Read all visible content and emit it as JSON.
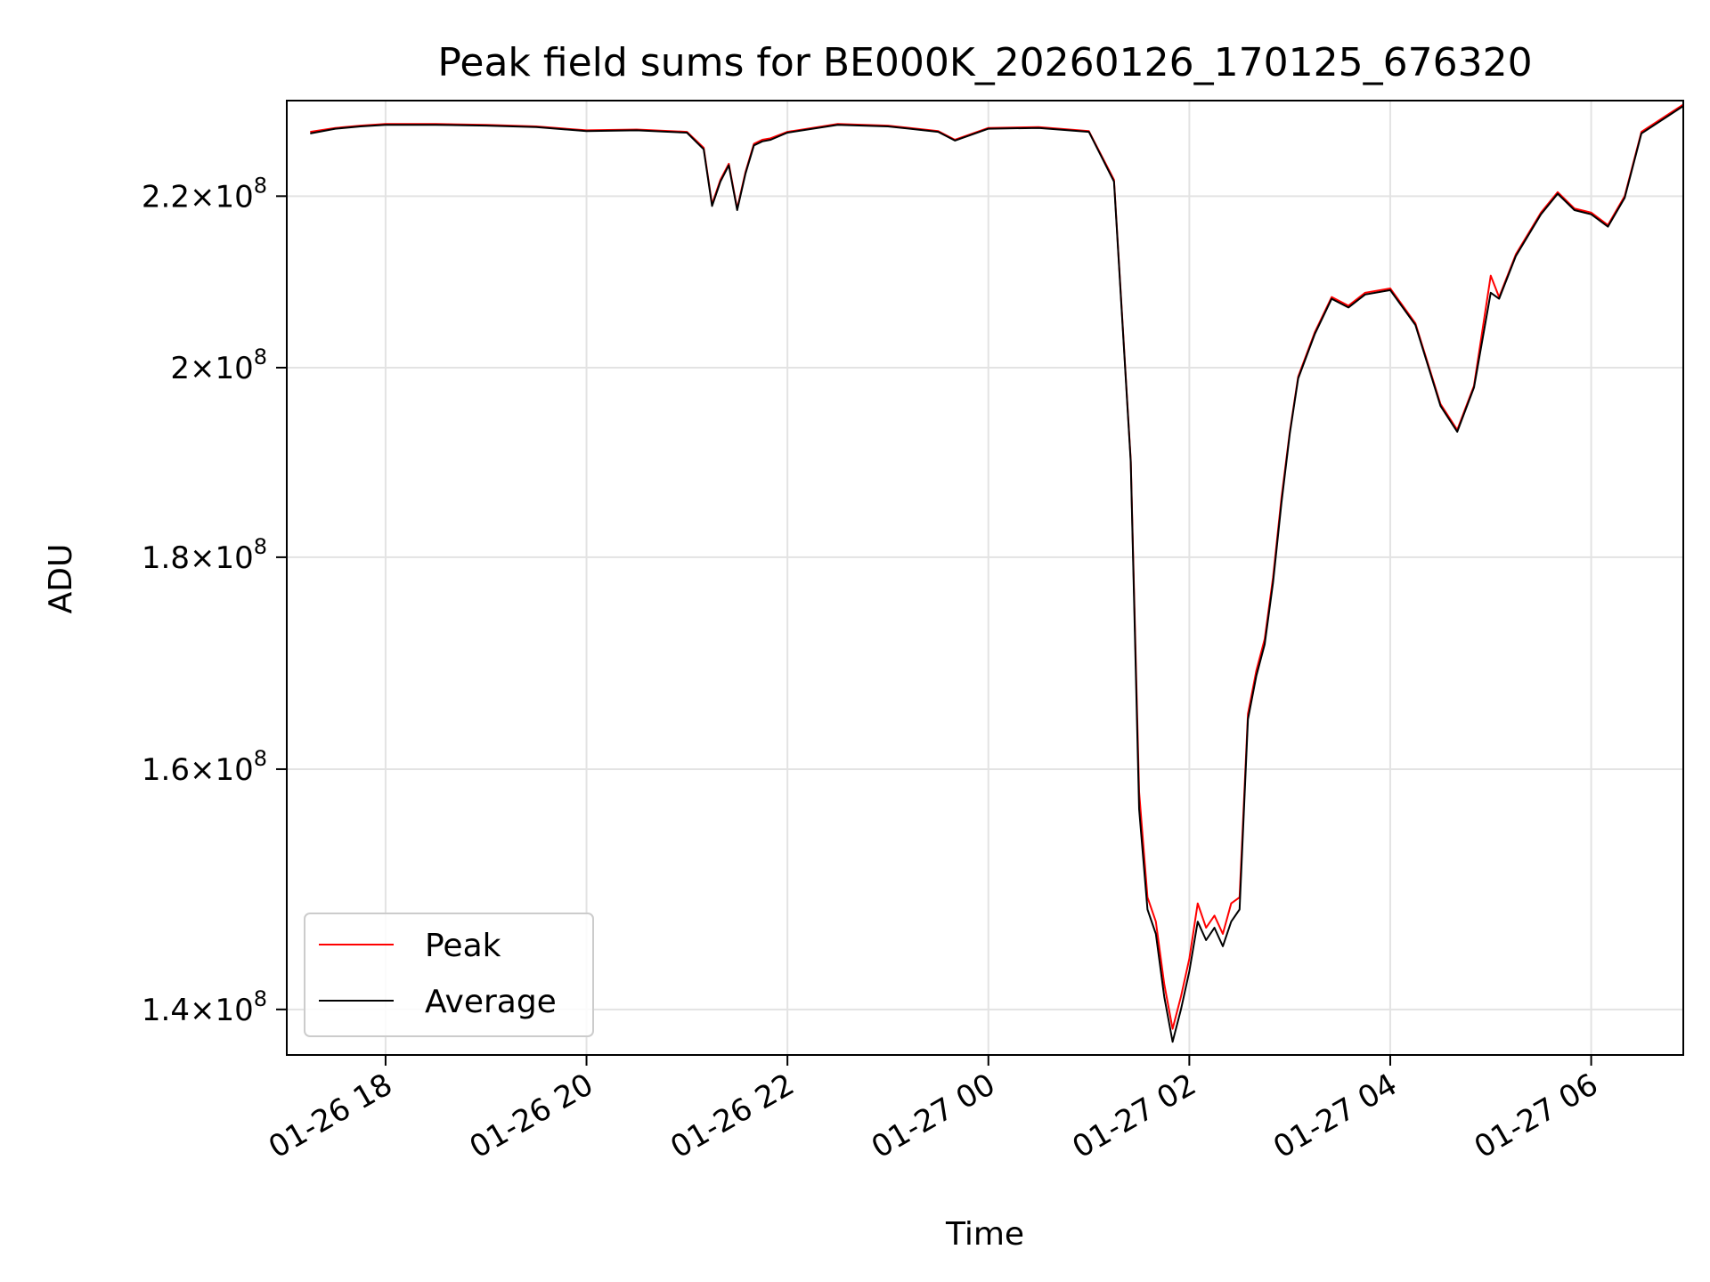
{
  "chart_data": {
    "type": "line",
    "title": "Peak field sums for BE000K_20260126_170125_676320",
    "xlabel": "Time",
    "ylabel": "ADU",
    "y_scale": "log",
    "xlim": [
      "2026-01-26 17:01",
      "2026-01-27 06:55"
    ],
    "ylim": [
      136500000,
      232000000
    ],
    "x_ticks": [
      "01-26 18",
      "01-26 20",
      "01-26 22",
      "01-27 00",
      "01-27 02",
      "01-27 04",
      "01-27 06"
    ],
    "x_tick_values": [
      "2026-01-26 18:00",
      "2026-01-26 20:00",
      "2026-01-26 22:00",
      "2026-01-27 00:00",
      "2026-01-27 02:00",
      "2026-01-27 04:00",
      "2026-01-27 06:00"
    ],
    "y_ticks": [
      {
        "value": 140000000,
        "mantissa": "1.4",
        "exponent": "8"
      },
      {
        "value": 160000000,
        "mantissa": "1.6",
        "exponent": "8"
      },
      {
        "value": 180000000,
        "mantissa": "1.8",
        "exponent": "8"
      },
      {
        "value": 200000000,
        "mantissa": "2",
        "exponent": "8"
      },
      {
        "value": 220000000,
        "mantissa": "2.2",
        "exponent": "8"
      }
    ],
    "grid": true,
    "legend_position": "lower-left",
    "series": [
      {
        "name": "Peak",
        "color": "#ff0000",
        "x": [
          "2026-01-26 17:15",
          "2026-01-26 17:30",
          "2026-01-26 17:45",
          "2026-01-26 18:00",
          "2026-01-26 18:30",
          "2026-01-26 19:00",
          "2026-01-26 19:30",
          "2026-01-26 20:00",
          "2026-01-26 20:30",
          "2026-01-26 21:00",
          "2026-01-26 21:10",
          "2026-01-26 21:15",
          "2026-01-26 21:20",
          "2026-01-26 21:25",
          "2026-01-26 21:30",
          "2026-01-26 21:35",
          "2026-01-26 21:40",
          "2026-01-26 21:45",
          "2026-01-26 21:50",
          "2026-01-26 22:00",
          "2026-01-26 22:30",
          "2026-01-26 23:00",
          "2026-01-26 23:30",
          "2026-01-26 23:40",
          "2026-01-27 00:00",
          "2026-01-27 00:30",
          "2026-01-27 01:00",
          "2026-01-27 01:15",
          "2026-01-27 01:25",
          "2026-01-27 01:30",
          "2026-01-27 01:35",
          "2026-01-27 01:40",
          "2026-01-27 01:45",
          "2026-01-27 01:50",
          "2026-01-27 01:55",
          "2026-01-27 02:00",
          "2026-01-27 02:05",
          "2026-01-27 02:10",
          "2026-01-27 02:15",
          "2026-01-27 02:20",
          "2026-01-27 02:25",
          "2026-01-27 02:30",
          "2026-01-27 02:35",
          "2026-01-27 02:40",
          "2026-01-27 02:45",
          "2026-01-27 02:50",
          "2026-01-27 02:55",
          "2026-01-27 03:00",
          "2026-01-27 03:05",
          "2026-01-27 03:15",
          "2026-01-27 03:25",
          "2026-01-27 03:35",
          "2026-01-27 03:45",
          "2026-01-27 04:00",
          "2026-01-27 04:15",
          "2026-01-27 04:30",
          "2026-01-27 04:40",
          "2026-01-27 04:50",
          "2026-01-27 05:00",
          "2026-01-27 05:05",
          "2026-01-27 05:15",
          "2026-01-27 05:30",
          "2026-01-27 05:40",
          "2026-01-27 05:50",
          "2026-01-27 06:00",
          "2026-01-27 06:10",
          "2026-01-27 06:20",
          "2026-01-27 06:30",
          "2026-01-27 06:55"
        ],
        "values": [
          228000000,
          228500000,
          228800000,
          229000000,
          229000000,
          228900000,
          228700000,
          228200000,
          228300000,
          228000000,
          226000000,
          219000000,
          222000000,
          224000000,
          218500000,
          223000000,
          226500000,
          227000000,
          227200000,
          228000000,
          229000000,
          228800000,
          228100000,
          227000000,
          228500000,
          228600000,
          228100000,
          222000000,
          190000000,
          158000000,
          149000000,
          147000000,
          142000000,
          138500000,
          141000000,
          144000000,
          148500000,
          146500000,
          147500000,
          146000000,
          148500000,
          149000000,
          165000000,
          169000000,
          172000000,
          178000000,
          186000000,
          193000000,
          199000000,
          204000000,
          208000000,
          207000000,
          208500000,
          209000000,
          205000000,
          196000000,
          193200000,
          198000000,
          210500000,
          208000000,
          213000000,
          218000000,
          220500000,
          218500000,
          218000000,
          216500000,
          220000000,
          228000000,
          231500000
        ]
      },
      {
        "name": "Average",
        "color": "#000000",
        "x": [
          "2026-01-26 17:15",
          "2026-01-26 17:30",
          "2026-01-26 17:45",
          "2026-01-26 18:00",
          "2026-01-26 18:30",
          "2026-01-26 19:00",
          "2026-01-26 19:30",
          "2026-01-26 20:00",
          "2026-01-26 20:30",
          "2026-01-26 21:00",
          "2026-01-26 21:10",
          "2026-01-26 21:15",
          "2026-01-26 21:20",
          "2026-01-26 21:25",
          "2026-01-26 21:30",
          "2026-01-26 21:35",
          "2026-01-26 21:40",
          "2026-01-26 21:45",
          "2026-01-26 21:50",
          "2026-01-26 22:00",
          "2026-01-26 22:30",
          "2026-01-26 23:00",
          "2026-01-26 23:30",
          "2026-01-26 23:40",
          "2026-01-27 00:00",
          "2026-01-27 00:30",
          "2026-01-27 01:00",
          "2026-01-27 01:15",
          "2026-01-27 01:25",
          "2026-01-27 01:30",
          "2026-01-27 01:35",
          "2026-01-27 01:40",
          "2026-01-27 01:45",
          "2026-01-27 01:50",
          "2026-01-27 01:55",
          "2026-01-27 02:00",
          "2026-01-27 02:05",
          "2026-01-27 02:10",
          "2026-01-27 02:15",
          "2026-01-27 02:20",
          "2026-01-27 02:25",
          "2026-01-27 02:30",
          "2026-01-27 02:35",
          "2026-01-27 02:40",
          "2026-01-27 02:45",
          "2026-01-27 02:50",
          "2026-01-27 02:55",
          "2026-01-27 03:00",
          "2026-01-27 03:05",
          "2026-01-27 03:15",
          "2026-01-27 03:25",
          "2026-01-27 03:35",
          "2026-01-27 03:45",
          "2026-01-27 04:00",
          "2026-01-27 04:15",
          "2026-01-27 04:30",
          "2026-01-27 04:40",
          "2026-01-27 04:50",
          "2026-01-27 05:00",
          "2026-01-27 05:05",
          "2026-01-27 05:15",
          "2026-01-27 05:30",
          "2026-01-27 05:40",
          "2026-01-27 05:50",
          "2026-01-27 06:00",
          "2026-01-27 06:10",
          "2026-01-27 06:20",
          "2026-01-27 06:30",
          "2026-01-27 06:55"
        ],
        "values": [
          227800000,
          228400000,
          228700000,
          228900000,
          228900000,
          228800000,
          228600000,
          228100000,
          228200000,
          227900000,
          225800000,
          218800000,
          221800000,
          223800000,
          218300000,
          222800000,
          226300000,
          226800000,
          227000000,
          227900000,
          228900000,
          228700000,
          228000000,
          226900000,
          228400000,
          228500000,
          228000000,
          221800000,
          189800000,
          156500000,
          148000000,
          146000000,
          141000000,
          137500000,
          140000000,
          143000000,
          147000000,
          145500000,
          146500000,
          145000000,
          147000000,
          148000000,
          164500000,
          168500000,
          171500000,
          177500000,
          185500000,
          192800000,
          198800000,
          203800000,
          207800000,
          206800000,
          208300000,
          208800000,
          204800000,
          195800000,
          193000000,
          197800000,
          208500000,
          207800000,
          212800000,
          217800000,
          220300000,
          218300000,
          217800000,
          216300000,
          219800000,
          227800000,
          231300000
        ]
      }
    ]
  }
}
